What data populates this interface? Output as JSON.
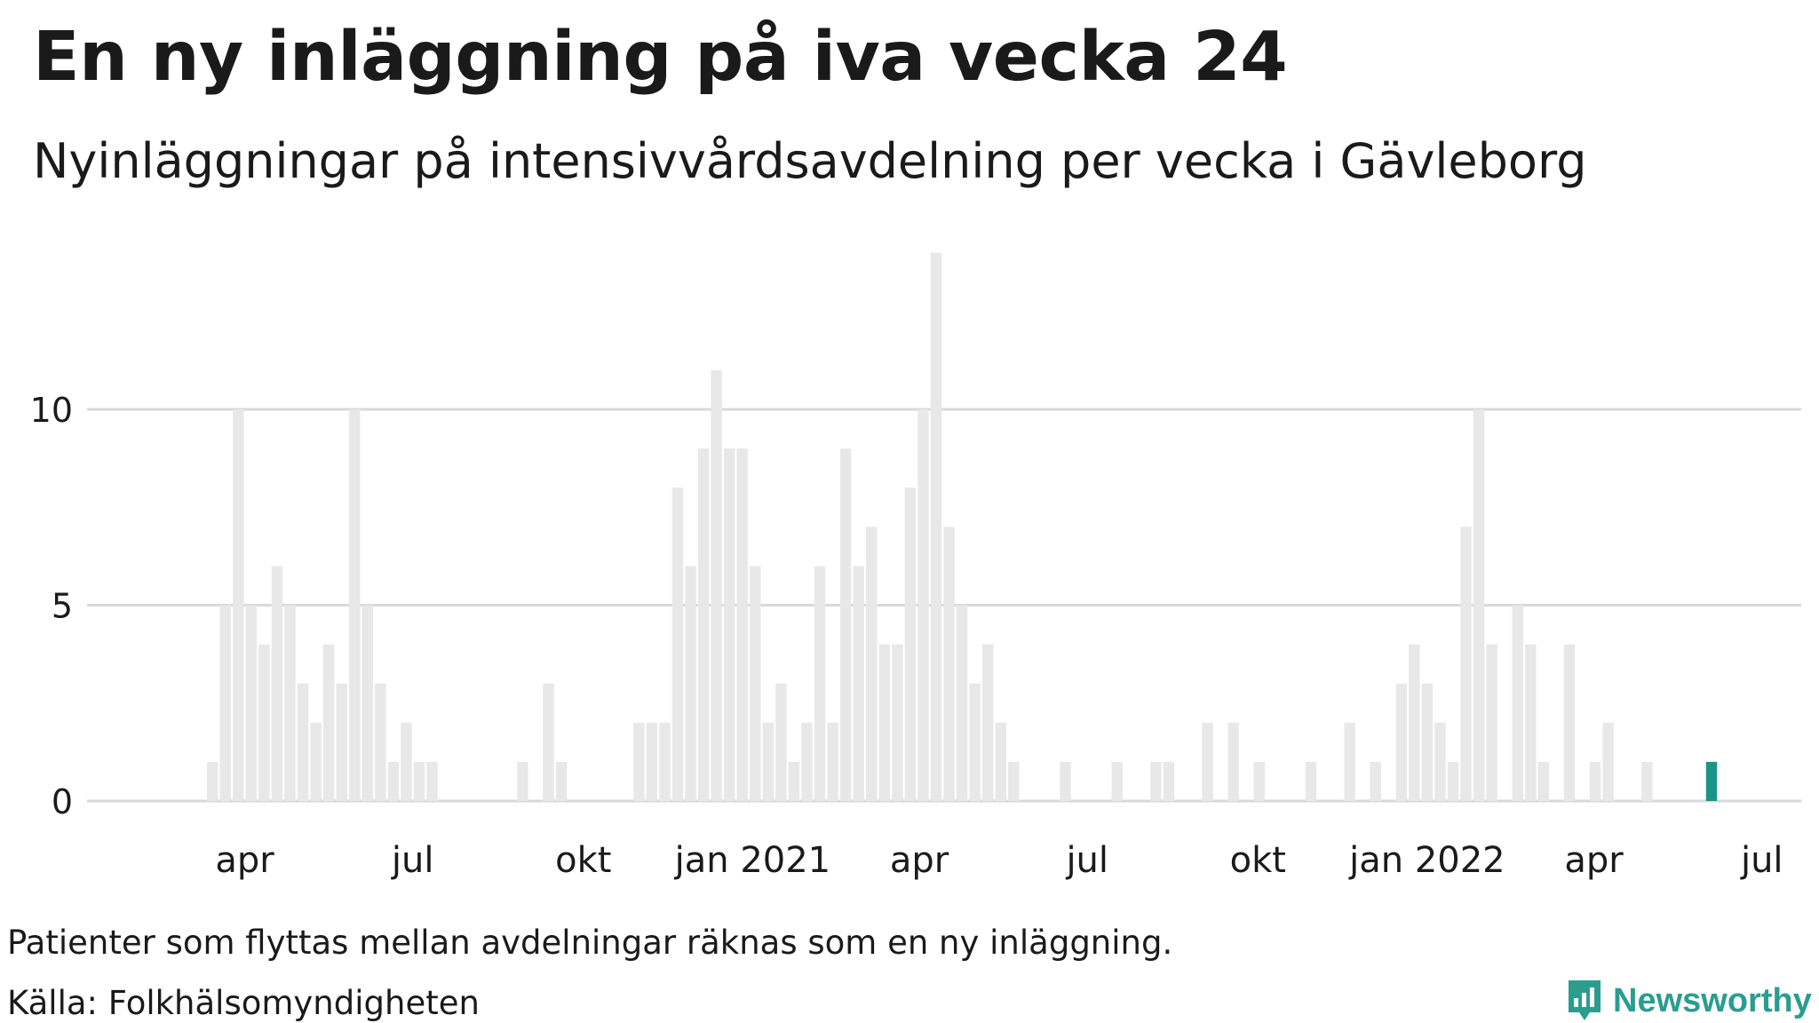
{
  "title": "En ny inläggning på iva vecka 24",
  "subtitle": "Nyinläggningar på intensivvårdsavdelning per vecka i Gävleborg",
  "note": "Patienter som flyttas mellan avdelningar räknas som en ny inläggning.",
  "source": "Källa: Folkhälsomyndigheten",
  "brand": "Newsworthy",
  "colors": {
    "bar": "#e8e8e8",
    "highlight": "#1a9488",
    "grid": "#d9d9d9",
    "brand": "#2a9d8f"
  },
  "chart_data": {
    "type": "bar",
    "title": "En ny inläggning på iva vecka 24",
    "subtitle": "Nyinläggningar på intensivvårdsavdelning per vecka i Gävleborg",
    "xlabel": "",
    "ylabel": "",
    "ylim": [
      0,
      14
    ],
    "yticks": [
      0,
      5,
      10
    ],
    "grid": true,
    "xticks": [
      {
        "label": "apr",
        "week_index": 2.5
      },
      {
        "label": "jul",
        "week_index": 15.5
      },
      {
        "label": "okt",
        "week_index": 28.7
      },
      {
        "label": "jan 2021",
        "week_index": 41.8
      },
      {
        "label": "apr",
        "week_index": 54.7
      },
      {
        "label": "jul",
        "week_index": 67.7
      },
      {
        "label": "okt",
        "week_index": 80.9
      },
      {
        "label": "jan 2022",
        "week_index": 94.0
      },
      {
        "label": "apr",
        "week_index": 106.9
      },
      {
        "label": "jul",
        "week_index": 119.9
      }
    ],
    "values": [
      1,
      5,
      10,
      5,
      4,
      6,
      5,
      3,
      2,
      4,
      3,
      10,
      5,
      3,
      1,
      2,
      1,
      1,
      0,
      0,
      0,
      0,
      0,
      0,
      1,
      0,
      3,
      1,
      0,
      0,
      0,
      0,
      0,
      2,
      2,
      2,
      8,
      6,
      9,
      11,
      9,
      9,
      6,
      2,
      3,
      1,
      2,
      6,
      2,
      9,
      6,
      7,
      4,
      4,
      8,
      10,
      14,
      7,
      5,
      3,
      4,
      2,
      1,
      0,
      0,
      0,
      1,
      0,
      0,
      0,
      1,
      0,
      0,
      1,
      1,
      0,
      0,
      2,
      0,
      2,
      0,
      1,
      0,
      0,
      0,
      1,
      0,
      0,
      2,
      0,
      1,
      0,
      3,
      4,
      3,
      2,
      1,
      7,
      10,
      4,
      0,
      5,
      4,
      1,
      0,
      4,
      0,
      1,
      2,
      0,
      0,
      1,
      0,
      0,
      0,
      0,
      1
    ],
    "highlight_index": 116,
    "highlight_label": "vecka 24"
  }
}
